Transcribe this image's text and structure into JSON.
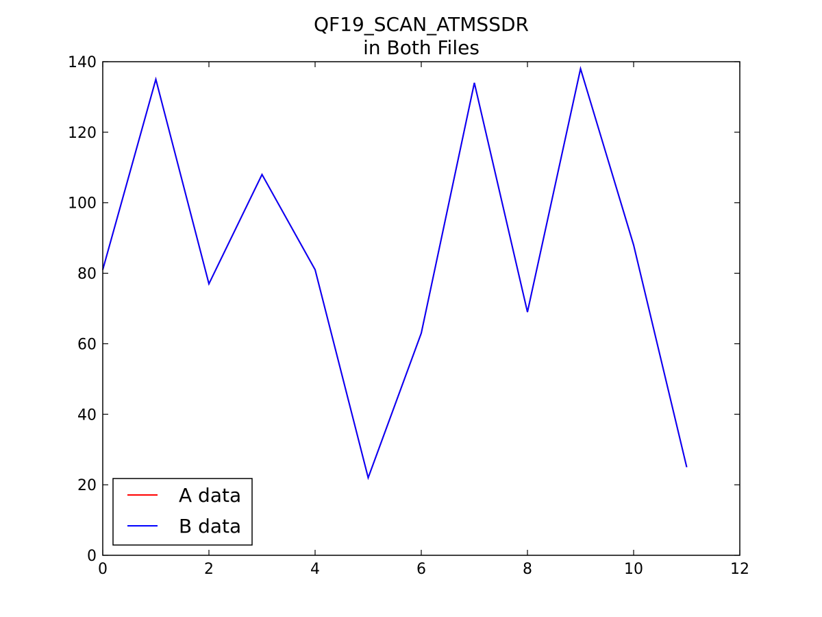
{
  "chart_data": {
    "type": "line",
    "title": "QF19_SCAN_ATMSSDR",
    "subtitle": "in Both Files",
    "xlabel": "",
    "ylabel": "",
    "xlim": [
      0,
      12
    ],
    "ylim": [
      0,
      140
    ],
    "x_ticks": [
      "0",
      "2",
      "4",
      "6",
      "8",
      "10",
      "12"
    ],
    "y_ticks": [
      "0",
      "20",
      "40",
      "60",
      "80",
      "100",
      "120",
      "140"
    ],
    "grid": false,
    "legend_position": "lower-left",
    "x": [
      0,
      1,
      2,
      3,
      4,
      5,
      6,
      7,
      8,
      9,
      10,
      11
    ],
    "series": [
      {
        "name": "A data",
        "color": "#ff0000",
        "values": [
          81,
          135,
          77,
          108,
          81,
          22,
          63,
          134,
          69,
          138,
          88,
          25
        ]
      },
      {
        "name": "B data",
        "color": "#0000ff",
        "values": [
          81,
          135,
          77,
          108,
          81,
          22,
          63,
          134,
          69,
          138,
          88,
          25
        ]
      }
    ]
  }
}
